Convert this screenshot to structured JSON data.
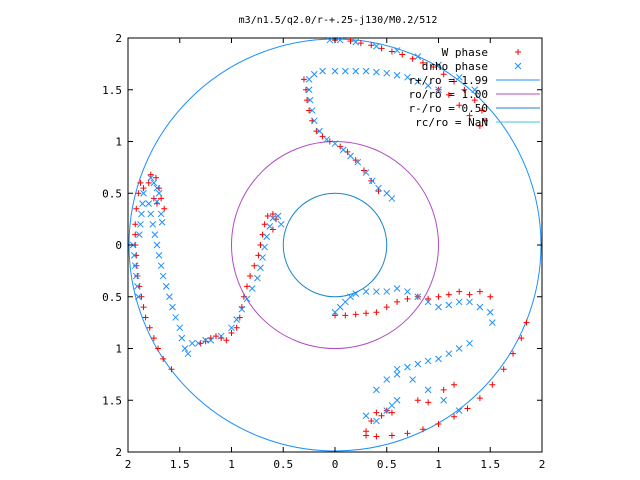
{
  "chart_data": {
    "type": "scatter",
    "title": "m3/n1.5/q2.0/r-+.25-j130/M0.2/512",
    "xlim": [
      -2,
      2
    ],
    "ylim": [
      -2,
      2
    ],
    "x_ticks": [
      {
        "value": -2,
        "label": "2"
      },
      {
        "value": -1.5,
        "label": "1.5"
      },
      {
        "value": -1,
        "label": "1"
      },
      {
        "value": -0.5,
        "label": "0.5"
      },
      {
        "value": 0,
        "label": "0"
      },
      {
        "value": 0.5,
        "label": "0.5"
      },
      {
        "value": 1,
        "label": "1"
      },
      {
        "value": 1.5,
        "label": "1.5"
      },
      {
        "value": 2,
        "label": "2"
      }
    ],
    "y_ticks": [
      {
        "value": 2,
        "label": "2"
      },
      {
        "value": 1.5,
        "label": "1.5"
      },
      {
        "value": 1,
        "label": "1"
      },
      {
        "value": 0.5,
        "label": "0.5"
      },
      {
        "value": 0,
        "label": "0"
      },
      {
        "value": -0.5,
        "label": "0.5"
      },
      {
        "value": -1,
        "label": "1"
      },
      {
        "value": -1.5,
        "label": "1.5"
      },
      {
        "value": -2,
        "label": "2"
      }
    ],
    "legend_position": "top-right",
    "circles": [
      {
        "label": "r+/ro = 1.99",
        "radius": 1.99,
        "color": "#1e90ff"
      },
      {
        "label": "ro/ro = 1.00",
        "radius": 1.0,
        "color": "#b04cc4"
      },
      {
        "label": "r-/ro = 0.50",
        "radius": 0.5,
        "color": "#1c86c8"
      },
      {
        "label": "rc/ro = NaN",
        "radius": null,
        "color": "#40c8d0"
      }
    ],
    "series": [
      {
        "name": "W phase",
        "marker": "plus",
        "color": "#ff0000",
        "points": [
          [
            -1.93,
            0.1
          ],
          [
            -1.93,
            0.0
          ],
          [
            -1.92,
            -0.1
          ],
          [
            -1.92,
            -0.2
          ],
          [
            -1.91,
            -0.3
          ],
          [
            -1.89,
            -0.4
          ],
          [
            -1.87,
            -0.5
          ],
          [
            -1.85,
            -0.6
          ],
          [
            -1.83,
            -0.7
          ],
          [
            -1.79,
            -0.8
          ],
          [
            -1.75,
            -0.9
          ],
          [
            -1.71,
            -1.0
          ],
          [
            -1.66,
            -1.1
          ],
          [
            -1.58,
            -1.2
          ],
          [
            -1.93,
            0.2
          ],
          [
            -1.92,
            0.35
          ],
          [
            -1.9,
            0.5
          ],
          [
            -1.88,
            0.6
          ],
          [
            -1.85,
            0.55
          ],
          [
            -1.8,
            0.6
          ],
          [
            -1.78,
            0.68
          ],
          [
            -1.73,
            0.65
          ],
          [
            -1.7,
            0.55
          ],
          [
            -1.75,
            0.45
          ],
          [
            -1.72,
            0.4
          ],
          [
            -1.68,
            0.45
          ],
          [
            -1.65,
            0.35
          ],
          [
            -1.3,
            -0.95
          ],
          [
            -1.25,
            -0.93
          ],
          [
            -1.2,
            -0.9
          ],
          [
            -1.15,
            -0.88
          ],
          [
            -1.1,
            -0.9
          ],
          [
            -1.05,
            -0.92
          ],
          [
            -1.0,
            -0.85
          ],
          [
            -0.95,
            -0.8
          ],
          [
            -0.92,
            -0.7
          ],
          [
            -0.9,
            -0.6
          ],
          [
            -0.88,
            -0.5
          ],
          [
            -0.85,
            -0.4
          ],
          [
            -0.82,
            -0.3
          ],
          [
            -0.78,
            -0.2
          ],
          [
            -0.74,
            -0.1
          ],
          [
            -0.72,
            0.0
          ],
          [
            -0.7,
            0.1
          ],
          [
            -0.68,
            0.2
          ],
          [
            -0.65,
            0.28
          ],
          [
            -0.6,
            0.3
          ],
          [
            -0.57,
            0.25
          ],
          [
            -0.6,
            0.15
          ],
          [
            0.0,
            1.98
          ],
          [
            0.15,
            1.97
          ],
          [
            0.25,
            1.95
          ],
          [
            0.35,
            1.93
          ],
          [
            0.45,
            1.9
          ],
          [
            0.55,
            1.87
          ],
          [
            0.65,
            1.84
          ],
          [
            0.75,
            1.8
          ],
          [
            0.85,
            1.76
          ],
          [
            0.95,
            1.72
          ],
          [
            1.05,
            1.65
          ],
          [
            1.15,
            1.58
          ],
          [
            1.25,
            1.5
          ],
          [
            1.35,
            1.4
          ],
          [
            1.42,
            1.3
          ],
          [
            1.45,
            1.2
          ],
          [
            1.4,
            1.15
          ],
          [
            1.3,
            1.25
          ],
          [
            1.2,
            1.35
          ],
          [
            1.1,
            1.45
          ],
          [
            1.0,
            1.5
          ],
          [
            -0.3,
            1.6
          ],
          [
            -0.28,
            1.5
          ],
          [
            -0.27,
            1.4
          ],
          [
            -0.25,
            1.3
          ],
          [
            -0.22,
            1.2
          ],
          [
            -0.18,
            1.1
          ],
          [
            -0.12,
            1.05
          ],
          [
            -0.05,
            1.0
          ],
          [
            0.05,
            0.95
          ],
          [
            0.12,
            0.9
          ],
          [
            0.2,
            0.82
          ],
          [
            0.28,
            0.72
          ],
          [
            0.35,
            0.62
          ],
          [
            0.42,
            0.52
          ],
          [
            0.0,
            -0.68
          ],
          [
            0.1,
            -0.68
          ],
          [
            0.2,
            -0.67
          ],
          [
            0.3,
            -0.66
          ],
          [
            0.4,
            -0.65
          ],
          [
            0.5,
            -0.6
          ],
          [
            0.6,
            -0.55
          ],
          [
            0.7,
            -0.52
          ],
          [
            0.8,
            -0.5
          ],
          [
            0.9,
            -0.52
          ],
          [
            1.0,
            -0.5
          ],
          [
            1.1,
            -0.48
          ],
          [
            1.2,
            -0.45
          ],
          [
            1.3,
            -0.48
          ],
          [
            1.4,
            -0.45
          ],
          [
            1.5,
            -0.5
          ],
          [
            1.85,
            -0.75
          ],
          [
            1.8,
            -0.9
          ],
          [
            1.72,
            -1.05
          ],
          [
            1.63,
            -1.2
          ],
          [
            1.52,
            -1.35
          ],
          [
            1.4,
            -1.48
          ],
          [
            1.28,
            -1.58
          ],
          [
            1.15,
            -1.66
          ],
          [
            1.0,
            -1.73
          ],
          [
            0.85,
            -1.78
          ],
          [
            0.7,
            -1.82
          ],
          [
            0.55,
            -1.84
          ],
          [
            0.4,
            -1.85
          ],
          [
            0.3,
            -1.84
          ],
          [
            0.3,
            -1.8
          ],
          [
            0.35,
            -1.7
          ],
          [
            0.4,
            -1.62
          ],
          [
            0.45,
            -1.65
          ],
          [
            0.5,
            -1.6
          ],
          [
            0.55,
            -1.62
          ],
          [
            0.8,
            -1.5
          ],
          [
            0.9,
            -1.52
          ],
          [
            1.05,
            -1.4
          ],
          [
            1.15,
            -1.35
          ]
        ]
      },
      {
        "name": "drho phase",
        "marker": "x",
        "color": "#1e90ff",
        "points": [
          [
            -1.95,
            0.0
          ],
          [
            -1.94,
            -0.1
          ],
          [
            -1.93,
            -0.2
          ],
          [
            -1.92,
            -0.3
          ],
          [
            -1.91,
            -0.4
          ],
          [
            -1.9,
            -0.5
          ],
          [
            -1.89,
            0.1
          ],
          [
            -1.88,
            0.2
          ],
          [
            -1.87,
            0.3
          ],
          [
            -1.86,
            0.4
          ],
          [
            -1.85,
            0.5
          ],
          [
            -1.8,
            0.4
          ],
          [
            -1.78,
            0.3
          ],
          [
            -1.76,
            0.2
          ],
          [
            -1.74,
            0.1
          ],
          [
            -1.72,
            0.0
          ],
          [
            -1.7,
            -0.1
          ],
          [
            -1.68,
            -0.2
          ],
          [
            -1.66,
            -0.3
          ],
          [
            -1.63,
            -0.4
          ],
          [
            -1.6,
            -0.5
          ],
          [
            -1.57,
            -0.6
          ],
          [
            -1.54,
            -0.7
          ],
          [
            -1.5,
            -0.8
          ],
          [
            -1.48,
            -0.9
          ],
          [
            -1.45,
            -1.0
          ],
          [
            -1.42,
            -1.05
          ],
          [
            -1.38,
            -0.95
          ],
          [
            -1.32,
            -0.95
          ],
          [
            -1.25,
            -0.92
          ],
          [
            -1.78,
            0.65
          ],
          [
            -1.75,
            0.6
          ],
          [
            -1.72,
            0.55
          ],
          [
            -1.7,
            0.5
          ],
          [
            -1.72,
            0.42
          ],
          [
            -1.68,
            0.3
          ],
          [
            -1.67,
            0.22
          ],
          [
            -1.2,
            -0.92
          ],
          [
            -1.1,
            -0.88
          ],
          [
            -1.0,
            -0.8
          ],
          [
            -0.95,
            -0.72
          ],
          [
            -0.9,
            -0.62
          ],
          [
            -0.85,
            -0.52
          ],
          [
            -0.8,
            -0.42
          ],
          [
            -0.75,
            -0.32
          ],
          [
            -0.72,
            -0.22
          ],
          [
            -0.7,
            -0.12
          ],
          [
            -0.68,
            -0.02
          ],
          [
            -0.66,
            0.08
          ],
          [
            -0.63,
            0.18
          ],
          [
            -0.6,
            0.26
          ],
          [
            -0.55,
            0.28
          ],
          [
            -0.52,
            0.2
          ],
          [
            -0.25,
            1.6
          ],
          [
            -0.2,
            1.65
          ],
          [
            -0.12,
            1.68
          ],
          [
            0.0,
            1.68
          ],
          [
            0.1,
            1.68
          ],
          [
            0.2,
            1.68
          ],
          [
            0.3,
            1.68
          ],
          [
            0.4,
            1.67
          ],
          [
            0.5,
            1.66
          ],
          [
            0.6,
            1.64
          ],
          [
            0.7,
            1.62
          ],
          [
            0.8,
            1.58
          ],
          [
            0.9,
            1.54
          ],
          [
            1.0,
            1.5
          ],
          [
            -0.25,
            1.5
          ],
          [
            -0.24,
            1.4
          ],
          [
            -0.22,
            1.3
          ],
          [
            -0.2,
            1.2
          ],
          [
            -0.15,
            1.1
          ],
          [
            -0.08,
            1.02
          ],
          [
            0.0,
            0.98
          ],
          [
            0.08,
            0.92
          ],
          [
            0.15,
            0.86
          ],
          [
            0.22,
            0.8
          ],
          [
            0.3,
            0.7
          ],
          [
            0.36,
            0.62
          ],
          [
            0.42,
            0.55
          ],
          [
            0.5,
            0.5
          ],
          [
            0.55,
            0.45
          ],
          [
            0.0,
            -0.65
          ],
          [
            0.05,
            -0.6
          ],
          [
            0.1,
            -0.55
          ],
          [
            0.15,
            -0.5
          ],
          [
            0.2,
            -0.47
          ],
          [
            0.3,
            -0.45
          ],
          [
            0.4,
            -0.45
          ],
          [
            0.5,
            -0.45
          ],
          [
            0.6,
            -0.42
          ],
          [
            0.7,
            -0.45
          ],
          [
            0.8,
            -0.5
          ],
          [
            0.9,
            -0.55
          ],
          [
            1.0,
            -0.6
          ],
          [
            1.1,
            -0.58
          ],
          [
            1.2,
            -0.55
          ],
          [
            1.3,
            -0.55
          ],
          [
            1.4,
            -0.6
          ],
          [
            1.5,
            -0.65
          ],
          [
            1.52,
            -0.75
          ],
          [
            -0.05,
            1.98
          ],
          [
            0.05,
            1.98
          ],
          [
            0.2,
            1.96
          ],
          [
            0.4,
            1.92
          ],
          [
            0.6,
            1.88
          ],
          [
            0.8,
            1.82
          ],
          [
            1.0,
            1.74
          ],
          [
            1.2,
            1.62
          ],
          [
            1.35,
            1.5
          ],
          [
            0.6,
            -1.2
          ],
          [
            0.7,
            -1.18
          ],
          [
            0.8,
            -1.15
          ],
          [
            0.9,
            -1.12
          ],
          [
            1.0,
            -1.1
          ],
          [
            1.1,
            -1.05
          ],
          [
            1.2,
            -1.0
          ],
          [
            1.3,
            -0.95
          ],
          [
            0.4,
            -1.4
          ],
          [
            0.5,
            -1.3
          ],
          [
            0.6,
            -1.25
          ],
          [
            0.75,
            -1.3
          ],
          [
            0.9,
            -1.4
          ],
          [
            1.05,
            -1.5
          ],
          [
            1.2,
            -1.6
          ],
          [
            0.3,
            -1.65
          ],
          [
            0.4,
            -1.7
          ],
          [
            0.5,
            -1.6
          ],
          [
            0.55,
            -1.55
          ],
          [
            0.6,
            -1.5
          ]
        ]
      }
    ]
  }
}
